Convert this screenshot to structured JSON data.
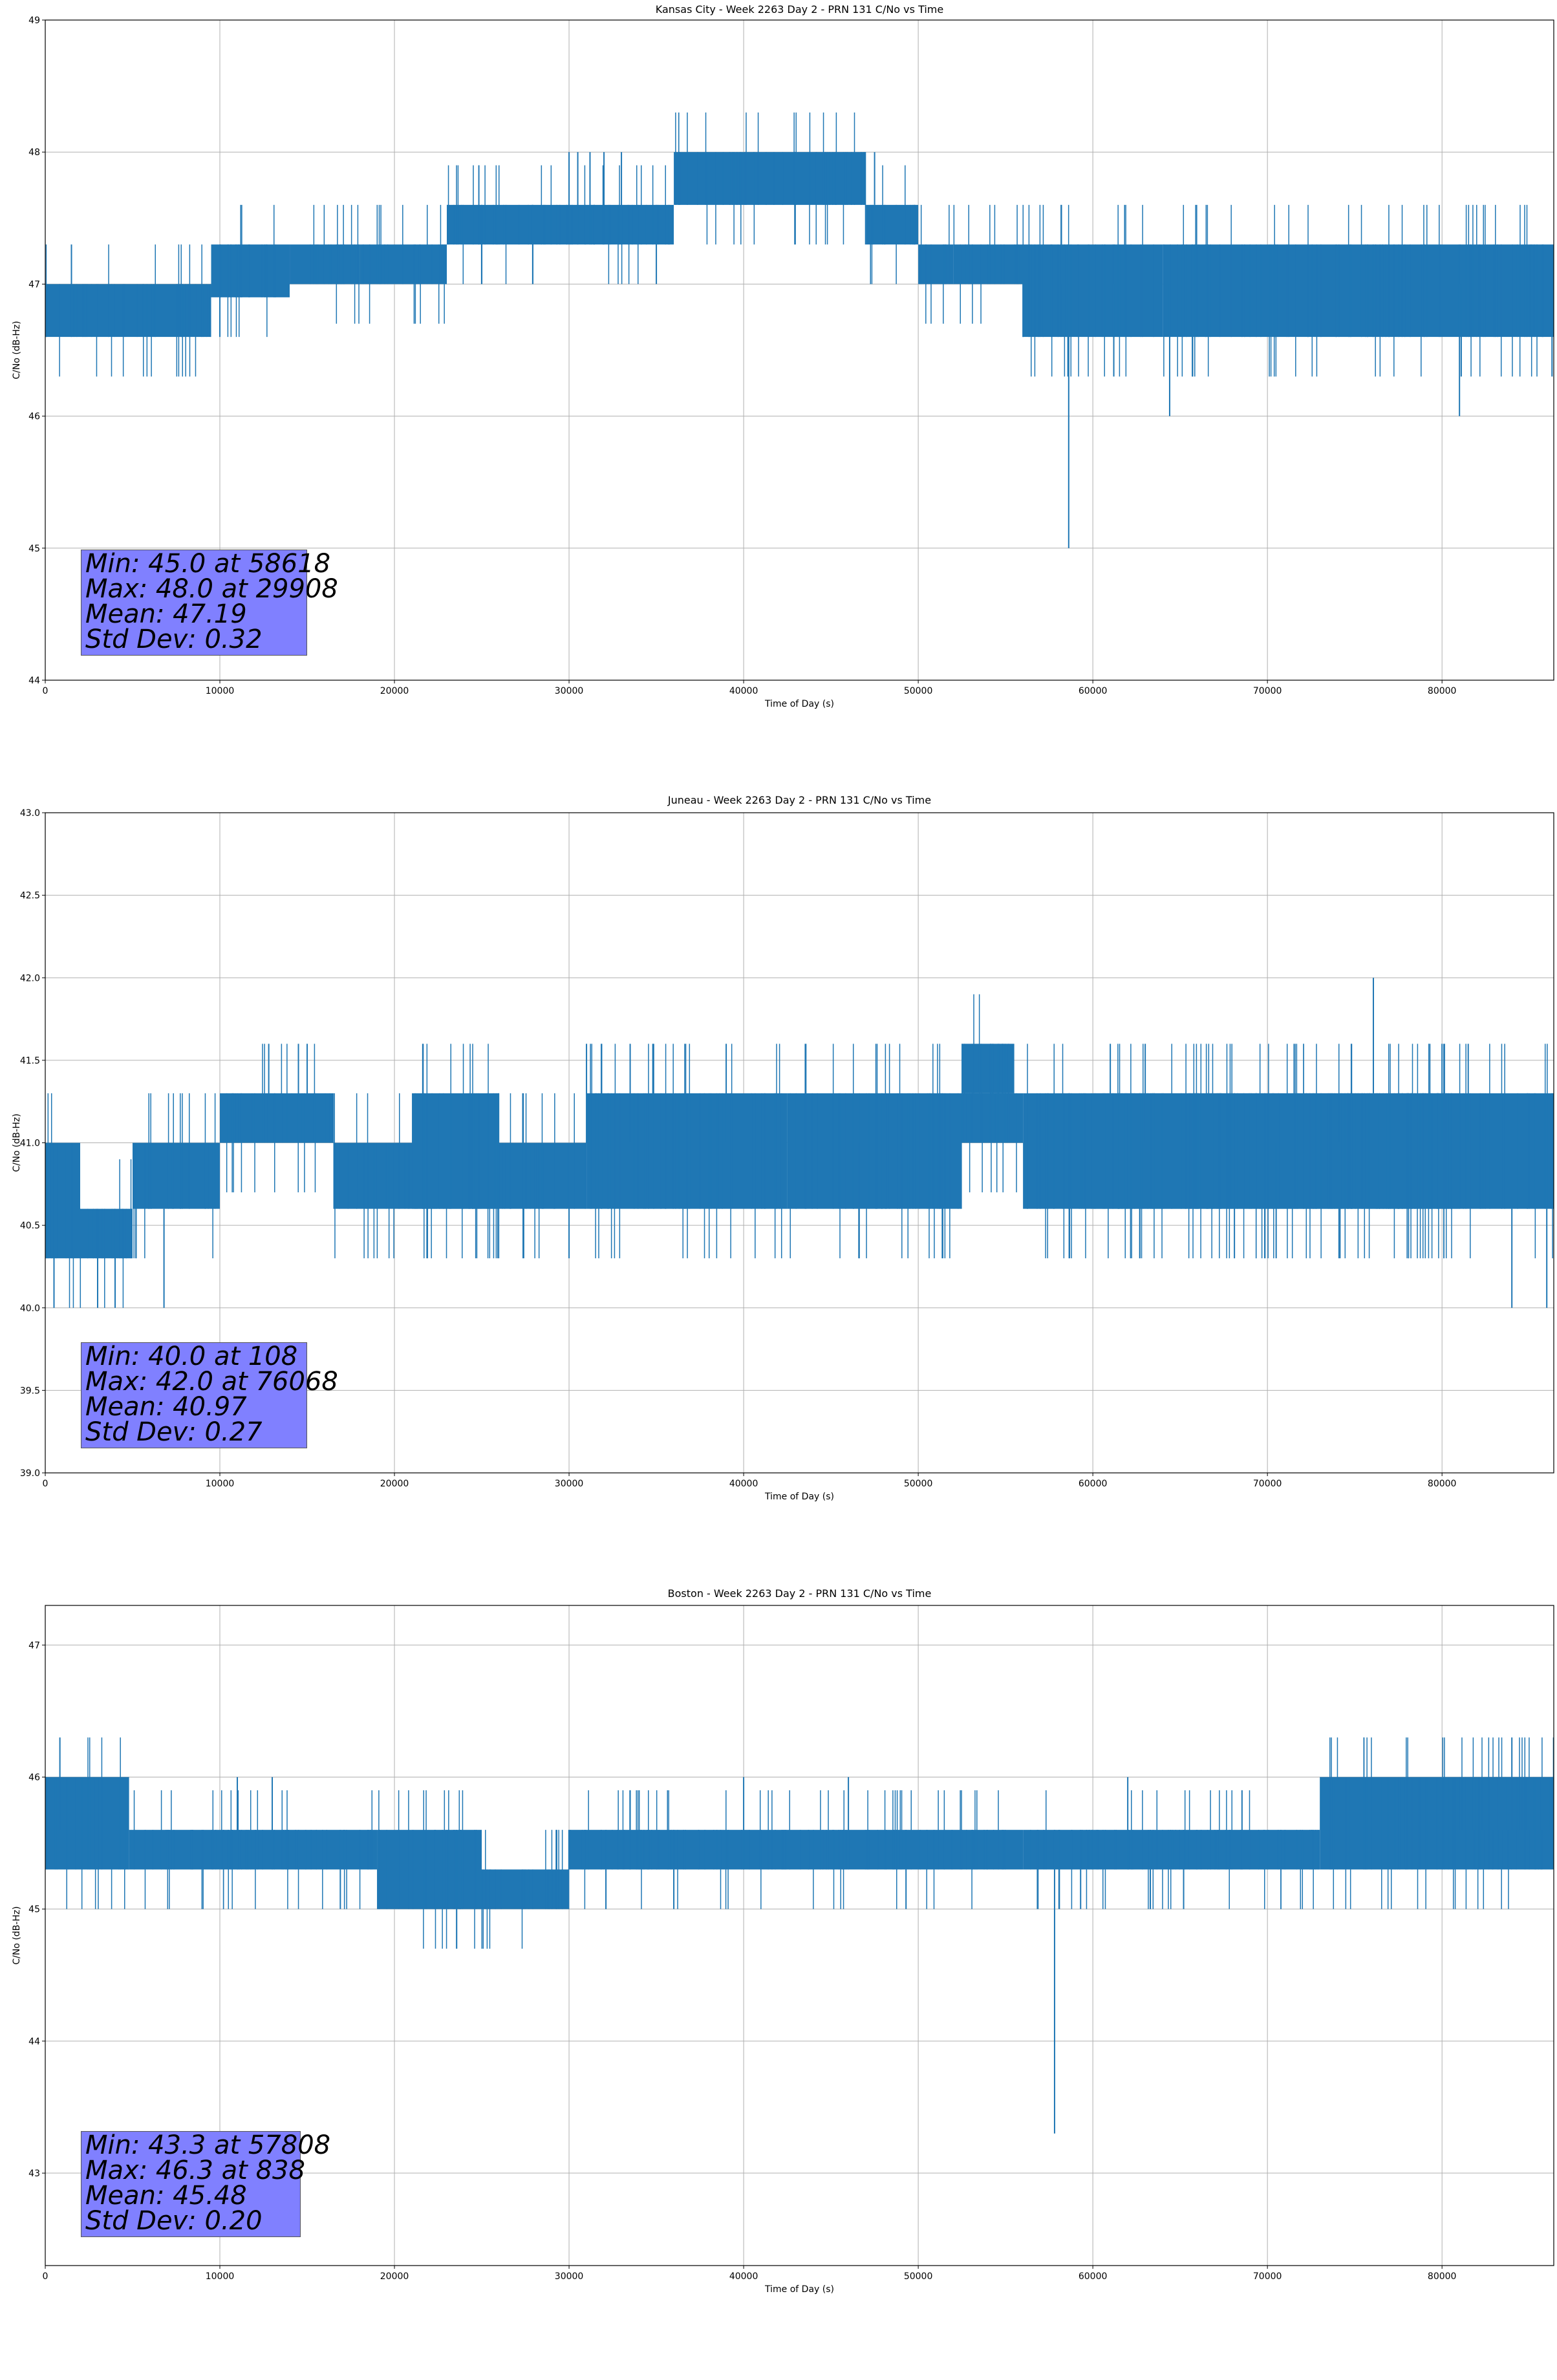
{
  "accent_color": "#1f77b4",
  "stats_box_color": "#8080ff",
  "chart_data": [
    {
      "type": "line",
      "title": "Kansas City - Week 2263 Day 2 - PRN 131 C/No vs Time",
      "xlabel": "Time of Day (s)",
      "ylabel": "C/No (dB-Hz)",
      "xlim": [
        0,
        86400
      ],
      "ylim": [
        44,
        49
      ],
      "xticks": [
        0,
        10000,
        20000,
        30000,
        40000,
        50000,
        60000,
        70000,
        80000
      ],
      "yticks": [
        44,
        45,
        46,
        47,
        48,
        49
      ],
      "ytick_labels": [
        "44",
        "45",
        "46",
        "47",
        "48",
        "49"
      ],
      "grid": true,
      "series": [
        {
          "bands": [
            {
              "x": [
                0,
                9500
              ],
              "low": 46.6,
              "high": 47.0
            },
            {
              "x": [
                9500,
                14000
              ],
              "low": 46.9,
              "high": 47.3
            },
            {
              "x": [
                14000,
                18000
              ],
              "low": 47.0,
              "high": 47.3
            },
            {
              "x": [
                18000,
                23000
              ],
              "low": 47.0,
              "high": 47.3
            },
            {
              "x": [
                23000,
                30000
              ],
              "low": 47.3,
              "high": 47.6
            },
            {
              "x": [
                30000,
                33000
              ],
              "low": 47.3,
              "high": 47.6
            },
            {
              "x": [
                33000,
                36000
              ],
              "low": 47.3,
              "high": 47.6
            },
            {
              "x": [
                36000,
                47000
              ],
              "low": 47.6,
              "high": 48.0
            },
            {
              "x": [
                47000,
                50000
              ],
              "low": 47.3,
              "high": 47.6
            },
            {
              "x": [
                50000,
                52000
              ],
              "low": 47.0,
              "high": 47.3
            },
            {
              "x": [
                52000,
                56000
              ],
              "low": 47.0,
              "high": 47.3
            },
            {
              "x": [
                56000,
                64000
              ],
              "low": 46.6,
              "high": 47.3
            },
            {
              "x": [
                64000,
                86400
              ],
              "low": 46.6,
              "high": 47.3
            }
          ],
          "spikes": [
            {
              "x": 1500,
              "low": 46.6,
              "high": 47.3
            },
            {
              "x": 10000,
              "low": 46.6,
              "high": 47.3
            },
            {
              "x": 25000,
              "low": 47.0,
              "high": 47.6
            },
            {
              "x": 30000,
              "low": 47.3,
              "high": 48.0
            },
            {
              "x": 30500,
              "low": 47.3,
              "high": 48.0
            },
            {
              "x": 31200,
              "low": 47.3,
              "high": 48.0
            },
            {
              "x": 32000,
              "low": 47.3,
              "high": 48.0
            },
            {
              "x": 33000,
              "low": 47.3,
              "high": 48.0
            },
            {
              "x": 35000,
              "low": 47.0,
              "high": 47.6
            },
            {
              "x": 47500,
              "low": 47.6,
              "high": 48.0
            },
            {
              "x": 56000,
              "low": 46.6,
              "high": 47.3
            },
            {
              "x": 58200,
              "low": 47.0,
              "high": 47.6
            },
            {
              "x": 58618,
              "low": 45.0,
              "high": 47.0
            },
            {
              "x": 61200,
              "low": 46.3,
              "high": 47.0
            },
            {
              "x": 64400,
              "low": 46.0,
              "high": 47.0
            },
            {
              "x": 81000,
              "low": 46.0,
              "high": 47.0
            },
            {
              "x": 81100,
              "low": 46.3,
              "high": 47.0
            },
            {
              "x": 86300,
              "low": 46.3,
              "high": 47.0
            }
          ]
        }
      ],
      "stats": [
        "Min: 45.0 at 58618",
        "Max: 48.0 at 29908",
        "Mean: 47.19",
        "Std Dev: 0.32"
      ]
    },
    {
      "type": "line",
      "title": "Juneau - Week 2263 Day 2 - PRN 131 C/No vs Time",
      "xlabel": "Time of Day (s)",
      "ylabel": "C/No (dB-Hz)",
      "xlim": [
        0,
        86400
      ],
      "ylim": [
        39.0,
        43.0
      ],
      "xticks": [
        0,
        10000,
        20000,
        30000,
        40000,
        50000,
        60000,
        70000,
        80000
      ],
      "yticks": [
        39.0,
        39.5,
        40.0,
        40.5,
        41.0,
        41.5,
        42.0,
        42.5,
        43.0
      ],
      "ytick_labels": [
        "39.0",
        "39.5",
        "40.0",
        "40.5",
        "41.0",
        "41.5",
        "42.0",
        "42.5",
        "43.0"
      ],
      "grid": true,
      "series": [
        {
          "bands": [
            {
              "x": [
                0,
                2000
              ],
              "low": 40.3,
              "high": 41.0
            },
            {
              "x": [
                2000,
                5000
              ],
              "low": 40.3,
              "high": 40.6
            },
            {
              "x": [
                5000,
                10000
              ],
              "low": 40.6,
              "high": 41.0
            },
            {
              "x": [
                10000,
                16500
              ],
              "low": 41.0,
              "high": 41.3
            },
            {
              "x": [
                16500,
                31000
              ],
              "low": 40.6,
              "high": 41.0
            },
            {
              "x": [
                21000,
                26000
              ],
              "low": 40.6,
              "high": 41.3
            },
            {
              "x": [
                31000,
                42500
              ],
              "low": 40.6,
              "high": 41.3
            },
            {
              "x": [
                42500,
                52500
              ],
              "low": 40.6,
              "high": 41.3
            },
            {
              "x": [
                52500,
                56000
              ],
              "low": 41.0,
              "high": 41.3
            },
            {
              "x": [
                52500,
                55500
              ],
              "low": 41.3,
              "high": 41.6
            },
            {
              "x": [
                56000,
                86400
              ],
              "low": 40.6,
              "high": 41.3
            },
            {
              "x": [
                60000,
                81000
              ],
              "low": 40.6,
              "high": 41.3
            }
          ],
          "spikes": [
            {
              "x": 500,
              "low": 40.0,
              "high": 40.6
            },
            {
              "x": 3000,
              "low": 40.0,
              "high": 40.6
            },
            {
              "x": 4000,
              "low": 40.0,
              "high": 40.6
            },
            {
              "x": 6800,
              "low": 40.0,
              "high": 40.6
            },
            {
              "x": 12800,
              "low": 41.0,
              "high": 41.6
            },
            {
              "x": 14500,
              "low": 41.0,
              "high": 41.6
            },
            {
              "x": 15000,
              "low": 41.0,
              "high": 41.6
            },
            {
              "x": 27400,
              "low": 40.3,
              "high": 41.0
            },
            {
              "x": 30000,
              "low": 40.3,
              "high": 41.0
            },
            {
              "x": 31000,
              "low": 41.0,
              "high": 41.6
            },
            {
              "x": 33500,
              "low": 41.0,
              "high": 41.6
            },
            {
              "x": 34800,
              "low": 41.0,
              "high": 41.6
            },
            {
              "x": 39000,
              "low": 41.0,
              "high": 41.6
            },
            {
              "x": 46600,
              "low": 40.3,
              "high": 41.0
            },
            {
              "x": 61000,
              "low": 41.0,
              "high": 41.6
            },
            {
              "x": 63000,
              "low": 41.0,
              "high": 41.6
            },
            {
              "x": 70500,
              "low": 40.3,
              "high": 41.0
            },
            {
              "x": 74100,
              "low": 40.3,
              "high": 41.0
            },
            {
              "x": 76068,
              "low": 41.3,
              "high": 42.0
            },
            {
              "x": 80000,
              "low": 41.0,
              "high": 41.6
            },
            {
              "x": 81500,
              "low": 41.0,
              "high": 41.6
            },
            {
              "x": 84000,
              "low": 40.0,
              "high": 40.6
            },
            {
              "x": 86000,
              "low": 40.0,
              "high": 40.6
            }
          ]
        }
      ],
      "stats": [
        "Min: 40.0 at 108",
        "Max: 42.0 at 76068",
        "Mean: 40.97",
        "Std Dev: 0.27"
      ]
    },
    {
      "type": "line",
      "title": "Boston - Week 2263 Day 2 - PRN 131 C/No vs Time",
      "xlabel": "Time of Day (s)",
      "ylabel": "C/No (dB-Hz)",
      "xlim": [
        0,
        86400
      ],
      "ylim": [
        42.3,
        47.3
      ],
      "xticks": [
        0,
        10000,
        20000,
        30000,
        40000,
        50000,
        60000,
        70000,
        80000
      ],
      "yticks": [
        43,
        44,
        45,
        46,
        47
      ],
      "ytick_labels": [
        "43",
        "44",
        "45",
        "46",
        "47"
      ],
      "grid": true,
      "series": [
        {
          "bands": [
            {
              "x": [
                0,
                4800
              ],
              "low": 45.3,
              "high": 46.0
            },
            {
              "x": [
                4800,
                19000
              ],
              "low": 45.3,
              "high": 45.6
            },
            {
              "x": [
                19000,
                25000
              ],
              "low": 45.0,
              "high": 45.6
            },
            {
              "x": [
                25000,
                30000
              ],
              "low": 45.0,
              "high": 45.3
            },
            {
              "x": [
                30000,
                56000
              ],
              "low": 45.3,
              "high": 45.6
            },
            {
              "x": [
                56000,
                73000
              ],
              "low": 45.3,
              "high": 45.6
            },
            {
              "x": [
                73000,
                86400
              ],
              "low": 45.3,
              "high": 46.0
            },
            {
              "x": [
                81000,
                86400
              ],
              "low": 45.6,
              "high": 46.0
            }
          ],
          "spikes": [
            {
              "x": 838,
              "low": 45.6,
              "high": 46.3
            },
            {
              "x": 11000,
              "low": 45.3,
              "high": 46.0
            },
            {
              "x": 13000,
              "low": 45.3,
              "high": 46.0
            },
            {
              "x": 16900,
              "low": 45.0,
              "high": 45.6
            },
            {
              "x": 36000,
              "low": 45.0,
              "high": 45.6
            },
            {
              "x": 40000,
              "low": 45.3,
              "high": 46.0
            },
            {
              "x": 46000,
              "low": 45.3,
              "high": 46.0
            },
            {
              "x": 49300,
              "low": 45.0,
              "high": 45.6
            },
            {
              "x": 57808,
              "low": 43.3,
              "high": 45.6
            },
            {
              "x": 59300,
              "low": 45.0,
              "high": 45.6
            },
            {
              "x": 62000,
              "low": 45.3,
              "high": 46.0
            },
            {
              "x": 65200,
              "low": 45.0,
              "high": 45.6
            },
            {
              "x": 84000,
              "low": 45.6,
              "high": 46.3
            }
          ]
        }
      ],
      "stats": [
        "Min: 43.3 at 57808",
        "Max: 46.3 at 838",
        "Mean: 45.48",
        "Std Dev: 0.20"
      ]
    }
  ]
}
